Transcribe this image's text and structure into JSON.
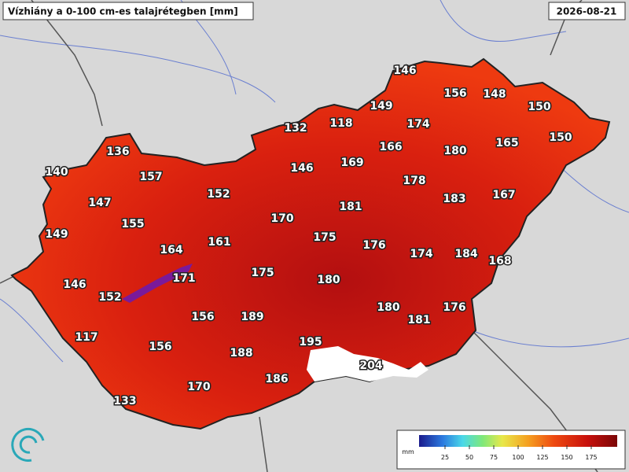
{
  "header": {
    "title": "Vízhiány a 0-100 cm-es talajrétegben [mm]",
    "date": "2026-08-21"
  },
  "stations": [
    146,
    156,
    148,
    150,
    149,
    174,
    132,
    118,
    166,
    180,
    165,
    150,
    136,
    140,
    157,
    146,
    169,
    178,
    152,
    183,
    167,
    147,
    181,
    170,
    155,
    149,
    175,
    161,
    176,
    174,
    184,
    164,
    168,
    175,
    171,
    180,
    146,
    152,
    180,
    176,
    156,
    189,
    181,
    117,
    156,
    188,
    195,
    204,
    186,
    170,
    133
  ],
  "legend": {
    "unit": "mm",
    "ticks": [
      25,
      50,
      75,
      100,
      125,
      150,
      175
    ]
  }
}
